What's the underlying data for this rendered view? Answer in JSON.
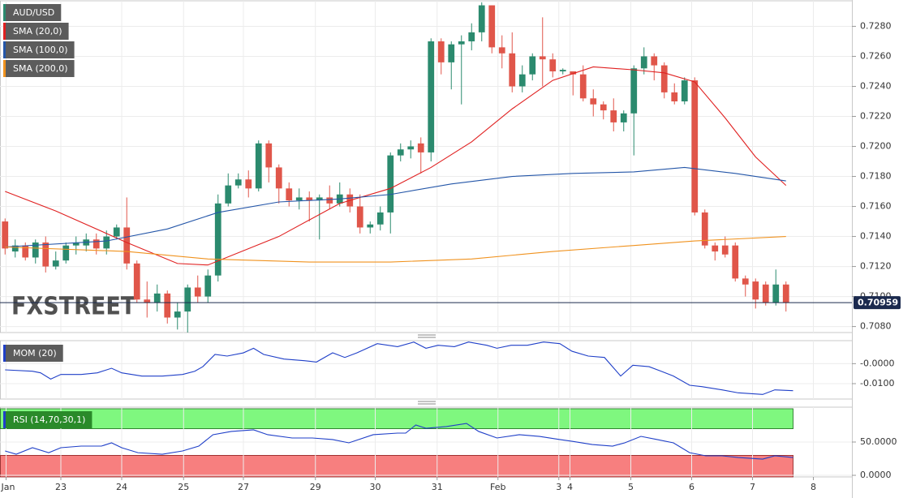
{
  "chart_data": [
    {
      "type": "candlestick",
      "name": "AUD/USD",
      "up_color": "#2b8a6e",
      "down_color": "#e0564a",
      "open": [
        0.715,
        0.713,
        0.7134,
        0.7126,
        0.7136,
        0.712,
        0.7124,
        0.7134,
        0.7134,
        0.7138,
        0.7132,
        0.714,
        0.7146,
        0.7122,
        0.7098,
        0.7096,
        0.7102,
        0.7086,
        0.709,
        0.7106,
        0.71,
        0.7114,
        0.7162,
        0.7174,
        0.7178,
        0.7172,
        0.7202,
        0.7186,
        0.7172,
        0.7164,
        0.7166,
        0.7164,
        0.7166,
        0.7162,
        0.7168,
        0.716,
        0.7146,
        0.7148,
        0.7156,
        0.7194,
        0.7198,
        0.7202,
        0.7196,
        0.727,
        0.7256,
        0.7268,
        0.727,
        0.7276,
        0.7294,
        0.7266,
        0.7262,
        0.724,
        0.7248,
        0.726,
        0.7258,
        0.725,
        0.725,
        0.7248,
        0.7232,
        0.7228,
        0.7224,
        0.7216,
        0.7222,
        0.7252,
        0.726,
        0.7254,
        0.7236,
        0.723,
        0.7244,
        0.7156,
        0.7134,
        0.7134,
        0.7134,
        0.7112,
        0.711,
        0.7108,
        0.7096,
        0.7108
      ],
      "high": [
        0.7152,
        0.7138,
        0.7136,
        0.7138,
        0.714,
        0.713,
        0.7136,
        0.714,
        0.7142,
        0.7142,
        0.7144,
        0.7148,
        0.7166,
        0.7124,
        0.711,
        0.7108,
        0.7104,
        0.7096,
        0.7108,
        0.7114,
        0.7118,
        0.7168,
        0.7182,
        0.7182,
        0.7184,
        0.7204,
        0.7204,
        0.7188,
        0.7176,
        0.7172,
        0.717,
        0.7168,
        0.7174,
        0.7176,
        0.7172,
        0.7168,
        0.715,
        0.716,
        0.7196,
        0.7202,
        0.7204,
        0.7206,
        0.7272,
        0.7272,
        0.727,
        0.7274,
        0.7282,
        0.7296,
        0.7294,
        0.7274,
        0.7276,
        0.7254,
        0.7262,
        0.7286,
        0.7262,
        0.7252,
        0.725,
        0.7254,
        0.7238,
        0.723,
        0.7232,
        0.7224,
        0.7254,
        0.7266,
        0.7262,
        0.7256,
        0.7242,
        0.7246,
        0.7246,
        0.7158,
        0.7136,
        0.714,
        0.7136,
        0.7114,
        0.7112,
        0.711,
        0.7118,
        0.711
      ],
      "low": [
        0.7128,
        0.7126,
        0.7124,
        0.7122,
        0.7116,
        0.7118,
        0.7122,
        0.7128,
        0.713,
        0.7128,
        0.7128,
        0.7138,
        0.7118,
        0.7096,
        0.7086,
        0.709,
        0.7082,
        0.7078,
        0.7076,
        0.7096,
        0.7096,
        0.711,
        0.716,
        0.7172,
        0.7166,
        0.717,
        0.7176,
        0.7162,
        0.716,
        0.7158,
        0.715,
        0.7138,
        0.7158,
        0.716,
        0.7156,
        0.7142,
        0.7142,
        0.7144,
        0.7142,
        0.719,
        0.7192,
        0.7182,
        0.719,
        0.7248,
        0.7238,
        0.7228,
        0.7264,
        0.727,
        0.7262,
        0.7252,
        0.7236,
        0.7236,
        0.7244,
        0.724,
        0.7246,
        0.7248,
        0.7234,
        0.723,
        0.722,
        0.7218,
        0.721,
        0.721,
        0.7194,
        0.7248,
        0.7244,
        0.7232,
        0.7228,
        0.7228,
        0.7154,
        0.7132,
        0.7124,
        0.7126,
        0.711,
        0.71,
        0.7092,
        0.7094,
        0.7094,
        0.709
      ],
      "close": [
        0.7132,
        0.7134,
        0.7126,
        0.7136,
        0.712,
        0.7124,
        0.7134,
        0.7136,
        0.7138,
        0.7132,
        0.714,
        0.7146,
        0.7122,
        0.7098,
        0.7096,
        0.7102,
        0.7086,
        0.709,
        0.7106,
        0.71,
        0.7114,
        0.7162,
        0.7174,
        0.7178,
        0.7172,
        0.7202,
        0.7186,
        0.7172,
        0.7164,
        0.7166,
        0.7164,
        0.7166,
        0.7162,
        0.7168,
        0.716,
        0.7146,
        0.7148,
        0.7156,
        0.7194,
        0.7198,
        0.72,
        0.7196,
        0.727,
        0.7256,
        0.7268,
        0.727,
        0.7276,
        0.7294,
        0.7266,
        0.7262,
        0.724,
        0.7248,
        0.726,
        0.7258,
        0.725,
        0.7251,
        0.7248,
        0.7232,
        0.7228,
        0.7224,
        0.7216,
        0.7222,
        0.7252,
        0.726,
        0.7254,
        0.7236,
        0.723,
        0.7244,
        0.7156,
        0.7134,
        0.713,
        0.7128,
        0.7112,
        0.7108,
        0.7098,
        0.7096,
        0.7108,
        0.7096
      ],
      "overlays": [
        {
          "name": "SMA (20,0)",
          "color": "#e02020",
          "x": [
            0,
            5,
            12,
            17,
            20,
            27,
            33,
            38,
            42,
            46,
            50,
            54,
            58,
            62,
            65,
            68,
            71,
            74,
            77
          ],
          "values": [
            0.717,
            0.7157,
            0.7136,
            0.7122,
            0.7121,
            0.714,
            0.7162,
            0.7172,
            0.7186,
            0.7203,
            0.7225,
            0.7244,
            0.7253,
            0.7251,
            0.7249,
            0.7243,
            0.7219,
            0.7193,
            0.7174
          ]
        },
        {
          "name": "SMA (100,0)",
          "color": "#2456a8",
          "x": [
            0,
            10,
            16,
            21,
            27,
            33,
            38,
            44,
            50,
            56,
            62,
            67,
            72,
            77
          ],
          "values": [
            0.7133,
            0.7137,
            0.7145,
            0.7156,
            0.7163,
            0.7165,
            0.7168,
            0.7175,
            0.718,
            0.7182,
            0.7183,
            0.7186,
            0.7182,
            0.7177
          ]
        },
        {
          "name": "SMA (200,0)",
          "color": "#f0921e",
          "x": [
            0,
            12,
            20,
            30,
            38,
            46,
            54,
            62,
            68,
            77
          ],
          "values": [
            0.7133,
            0.713,
            0.7125,
            0.7123,
            0.7123,
            0.7125,
            0.713,
            0.7134,
            0.7137,
            0.714
          ]
        }
      ],
      "last_price": 0.70959,
      "watermark": "FXSTREET",
      "xlim": [
        -0.5,
        83.5
      ],
      "ylim": [
        0.7076,
        0.7297
      ],
      "yticks": [
        {
          "value": 0.708,
          "label": "0.7080"
        },
        {
          "value": 0.71,
          "label": "0.7100"
        },
        {
          "value": 0.712,
          "label": "0.7120"
        },
        {
          "value": 0.714,
          "label": "0.7140"
        },
        {
          "value": 0.716,
          "label": "0.7160"
        },
        {
          "value": 0.718,
          "label": "0.7180"
        },
        {
          "value": 0.72,
          "label": "0.7200"
        },
        {
          "value": 0.722,
          "label": "0.7220"
        },
        {
          "value": 0.724,
          "label": "0.7240"
        },
        {
          "value": 0.726,
          "label": "0.7260"
        },
        {
          "value": 0.728,
          "label": "0.7280"
        }
      ],
      "grid": true
    },
    {
      "type": "line",
      "name": "MOM (20)",
      "color": "#1f3fc8",
      "x": [
        0,
        2.7,
        3.5,
        4.5,
        5.5,
        7.5,
        9.1,
        10.5,
        11.5,
        13.5,
        15.5,
        17.5,
        18.7,
        19.5,
        20.7,
        21.9,
        23.5,
        24.5,
        25.5,
        27.5,
        29.5,
        30.7,
        32.3,
        33.5,
        34.7,
        36.7,
        38.7,
        40.3,
        41.5,
        42.7,
        44.3,
        45.7,
        47.5,
        48.5,
        49.9,
        51.5,
        53.1,
        54.7,
        55.9,
        57.5,
        59.1,
        60.7,
        61.9,
        63.5,
        64.7,
        65.9,
        67.5,
        68.7,
        70.7,
        72.3,
        74.7,
        75.9,
        77.7
      ],
      "values": [
        -0.0031,
        -0.0038,
        -0.0046,
        -0.0077,
        -0.0054,
        -0.0054,
        -0.0046,
        -0.0023,
        -0.0046,
        -0.0062,
        -0.0062,
        -0.0054,
        -0.0038,
        -0.0015,
        0.0046,
        0.0038,
        0.0054,
        0.0077,
        0.0046,
        0.0023,
        0.0015,
        0.0008,
        0.0054,
        0.0031,
        0.0054,
        0.01,
        0.0085,
        0.0108,
        0.0077,
        0.0092,
        0.0085,
        0.0108,
        0.0092,
        0.0077,
        0.0092,
        0.0092,
        0.0108,
        0.01,
        0.0062,
        0.0038,
        0.0031,
        -0.0062,
        -0.0008,
        -0.0015,
        -0.0038,
        -0.0062,
        -0.0108,
        -0.0115,
        -0.0131,
        -0.0146,
        -0.0154,
        -0.0131,
        -0.0135
      ],
      "xlim": [
        -0.5,
        83.5
      ],
      "ylim": [
        -0.0177,
        0.0115
      ],
      "yticks": [
        {
          "value": 0,
          "label": "-0.0000"
        },
        {
          "value": -0.01,
          "label": "-0.0100"
        }
      ],
      "grid": true
    },
    {
      "type": "line",
      "name": "RSI (14,70,30,1)",
      "color": "#1f3fc8",
      "x": [
        0,
        1.1,
        2.7,
        4.3,
        5.5,
        7.5,
        9.5,
        10.5,
        11.5,
        13.1,
        15.5,
        17.5,
        19.1,
        20.5,
        22.3,
        24.5,
        25.9,
        28.3,
        30.3,
        32.3,
        33.9,
        36.3,
        38.7,
        39.5,
        40.5,
        41.5,
        43.5,
        45.5,
        46.7,
        48.5,
        50.7,
        52.7,
        54.7,
        55.9,
        57.9,
        59.9,
        61.1,
        62.7,
        64.3,
        65.9,
        67.5,
        69.1,
        70.7,
        72.3,
        74.7,
        75.9,
        77.7
      ],
      "values": [
        36.6,
        31.7,
        41.5,
        34,
        41.5,
        43.9,
        43.9,
        48.8,
        41.5,
        34,
        31.7,
        36.6,
        43.9,
        61,
        65.9,
        68.3,
        61,
        56.1,
        56.1,
        53.7,
        48.8,
        61,
        63.4,
        63.4,
        75.6,
        70.7,
        73.2,
        78,
        65.9,
        56.1,
        61,
        58.5,
        53.7,
        51.2,
        46.3,
        43.9,
        48.8,
        58.5,
        53.7,
        48.8,
        34,
        29.3,
        29.3,
        26.8,
        24.4,
        29.3,
        26.8
      ],
      "bands": [
        {
          "from": 70,
          "to": 100,
          "color": "#7ff77f"
        },
        {
          "from": -2.4,
          "to": 30,
          "color": "#f77f7f"
        }
      ],
      "xlim": [
        -0.5,
        83.5
      ],
      "ylim": [
        -2.4,
        102.4
      ],
      "yticks": [
        {
          "value": 50,
          "label": "50.0000"
        },
        {
          "value": 0,
          "label": "0.0000"
        }
      ],
      "xticks": [
        {
          "value": 0.1,
          "label": "Jan"
        },
        {
          "value": 5.5,
          "label": "23"
        },
        {
          "value": 11.5,
          "label": "24"
        },
        {
          "value": 17.6,
          "label": "25"
        },
        {
          "value": 23.5,
          "label": "27"
        },
        {
          "value": 30.6,
          "label": "29"
        },
        {
          "value": 36.5,
          "label": "30"
        },
        {
          "value": 42.6,
          "label": "31"
        },
        {
          "value": 48.6,
          "label": "Feb"
        },
        {
          "value": 54.6,
          "label": "3"
        },
        {
          "value": 55.7,
          "label": "4"
        },
        {
          "value": 61.7,
          "label": "5"
        },
        {
          "value": 67.7,
          "label": "6"
        },
        {
          "value": 73.7,
          "label": "7"
        },
        {
          "value": 79.7,
          "label": "8"
        }
      ],
      "grid": true
    }
  ]
}
